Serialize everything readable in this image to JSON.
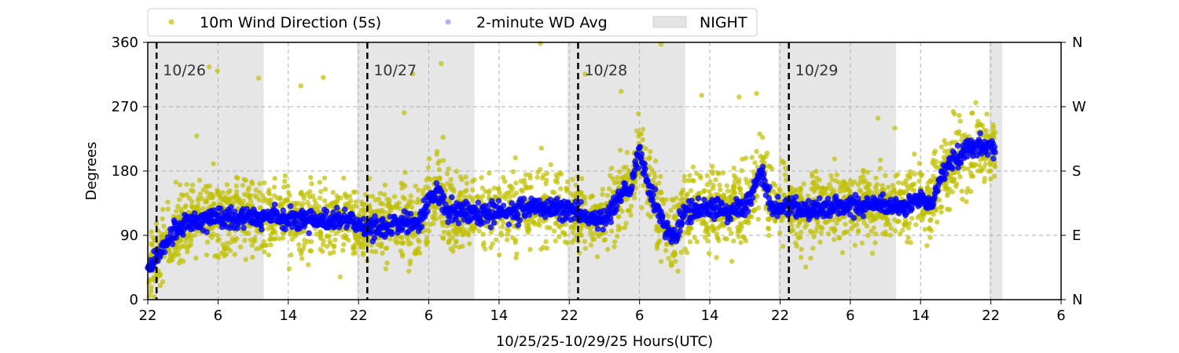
{
  "chart_data": {
    "type": "scatter",
    "xlabel": "10/25/25-10/29/25  Hours(UTC)",
    "ylabel": "Degrees",
    "ylim": [
      0,
      360
    ],
    "xlim_hours_from_start": [
      0,
      104
    ],
    "x_tick_labels": [
      "22",
      "6",
      "14",
      "22",
      "6",
      "14",
      "22",
      "6",
      "14",
      "22",
      "6",
      "14",
      "22",
      "6"
    ],
    "y_tick_labels": [
      "0",
      "90",
      "180",
      "270",
      "360"
    ],
    "y_right_tick_labels": [
      "N",
      "E",
      "S",
      "W",
      "N"
    ],
    "grid": true,
    "legend_position": "top",
    "legend": [
      "10m Wind Direction (5s)",
      "2-minute WD Avg",
      "NIGHT"
    ],
    "colors": {
      "scatter": "#bfbf00",
      "avg": "#0000ff",
      "night": "#d9d9d9"
    },
    "night_periods_hours": [
      [
        0,
        13.2
      ],
      [
        23.8,
        37.2
      ],
      [
        47.8,
        61.2
      ],
      [
        71.8,
        85.2
      ],
      [
        95.8,
        97.3
      ]
    ],
    "day_markers": [
      {
        "hour": 1.0,
        "label": "10/26"
      },
      {
        "hour": 25.0,
        "label": "10/27"
      },
      {
        "hour": 49.0,
        "label": "10/28"
      },
      {
        "hour": 73.0,
        "label": "10/29"
      }
    ],
    "data_end_hour": 96.5,
    "avg_series": {
      "name": "2-minute WD Avg",
      "hours": [
        0,
        1,
        3,
        5,
        8,
        12,
        16,
        20,
        23,
        25,
        28,
        31,
        32,
        33,
        34,
        38,
        42,
        44,
        48,
        50,
        52,
        54,
        55,
        56,
        57,
        58,
        59,
        60,
        61,
        63,
        66,
        68,
        70,
        71,
        73,
        75,
        78,
        82,
        86,
        88,
        89,
        90,
        91,
        92,
        94,
        96,
        96.5
      ],
      "degrees": [
        40,
        60,
        95,
        110,
        115,
        115,
        112,
        110,
        115,
        100,
        105,
        110,
        140,
        155,
        125,
        120,
        125,
        130,
        125,
        115,
        110,
        145,
        160,
        210,
        160,
        130,
        100,
        85,
        120,
        130,
        125,
        130,
        180,
        130,
        130,
        125,
        130,
        130,
        130,
        140,
        130,
        160,
        185,
        200,
        215,
        215,
        210
      ]
    },
    "scatter_series": {
      "name": "10m Wind Direction (5s)",
      "typical_spread_deg": 45
    }
  }
}
